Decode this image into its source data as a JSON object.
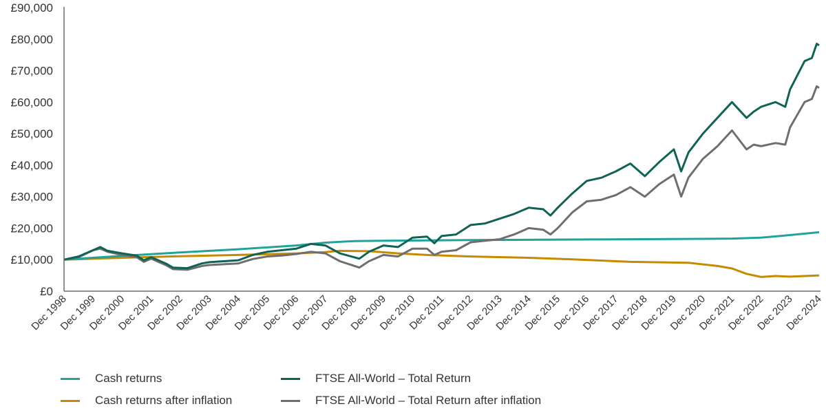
{
  "chart_data": {
    "type": "line",
    "title": "",
    "xlabel": "",
    "ylabel": "",
    "ylim": [
      0,
      90000
    ],
    "xlim": [
      "1998-12",
      "2024-12"
    ],
    "y_ticks": [
      0,
      10000,
      20000,
      30000,
      40000,
      50000,
      60000,
      70000,
      80000,
      90000
    ],
    "y_tick_labels": [
      "£0",
      "£10,000",
      "£20,000",
      "£30,000",
      "£40,000",
      "£50,000",
      "£60,000",
      "£70,000",
      "£80,000",
      "£90,000"
    ],
    "x_tick_labels": [
      "Dec 1998",
      "Dec 1999",
      "Dec 2000",
      "Dec 2001",
      "Dec 2002",
      "Dec 2003",
      "Dec 2004",
      "Dec 2005",
      "Dec 2006",
      "Dec 2007",
      "Dec 2008",
      "Dec 2009",
      "Dec 2010",
      "Dec 2011",
      "Dec 2012",
      "Dec 2013",
      "Dec 2014",
      "Dec 2015",
      "Dec 2016",
      "Dec 2017",
      "Dec 2018",
      "Dec 2019",
      "Dec 2020",
      "Dec 2021",
      "Dec 2022",
      "Dec 2023",
      "Dec 2024"
    ],
    "grid": false,
    "legend_position": "bottom",
    "series": [
      {
        "name": "Cash returns",
        "color": "#1fa39a",
        "points": [
          [
            "1998-12",
            10000
          ],
          [
            "2000-12",
            11200
          ],
          [
            "2002-12",
            12300
          ],
          [
            "2004-12",
            13300
          ],
          [
            "2006-12",
            14500
          ],
          [
            "2007-12",
            15400
          ],
          [
            "2008-12",
            15900
          ],
          [
            "2009-12",
            16000
          ],
          [
            "2012-12",
            16200
          ],
          [
            "2016-12",
            16400
          ],
          [
            "2020-12",
            16600
          ],
          [
            "2021-12",
            16700
          ],
          [
            "2022-12",
            17000
          ],
          [
            "2023-12",
            17800
          ],
          [
            "2024-12",
            18700
          ]
        ]
      },
      {
        "name": "Cash returns after inflation",
        "color": "#c68a00",
        "points": [
          [
            "1998-12",
            10000
          ],
          [
            "2000-12",
            10600
          ],
          [
            "2002-12",
            11100
          ],
          [
            "2004-12",
            11500
          ],
          [
            "2006-12",
            12000
          ],
          [
            "2007-12",
            12400
          ],
          [
            "2008-06",
            12800
          ],
          [
            "2009-06",
            12700
          ],
          [
            "2010-06",
            12000
          ],
          [
            "2011-06",
            11500
          ],
          [
            "2012-12",
            11000
          ],
          [
            "2014-12",
            10600
          ],
          [
            "2016-06",
            10100
          ],
          [
            "2018-06",
            9300
          ],
          [
            "2020-06",
            9000
          ],
          [
            "2021-06",
            8000
          ],
          [
            "2021-12",
            7200
          ],
          [
            "2022-06",
            5500
          ],
          [
            "2022-12",
            4500
          ],
          [
            "2023-06",
            4800
          ],
          [
            "2023-12",
            4600
          ],
          [
            "2024-12",
            5000
          ]
        ]
      },
      {
        "name": "FTSE All-World – Total Return",
        "color": "#0f6355",
        "points": [
          [
            "1998-12",
            10000
          ],
          [
            "1999-06",
            11000
          ],
          [
            "1999-12",
            13000
          ],
          [
            "2000-03",
            14000
          ],
          [
            "2000-06",
            12800
          ],
          [
            "2000-12",
            12000
          ],
          [
            "2001-06",
            11300
          ],
          [
            "2001-09",
            9800
          ],
          [
            "2001-12",
            10800
          ],
          [
            "2002-06",
            8800
          ],
          [
            "2002-09",
            7500
          ],
          [
            "2003-03",
            7300
          ],
          [
            "2003-09",
            8800
          ],
          [
            "2003-12",
            9200
          ],
          [
            "2004-12",
            9800
          ],
          [
            "2005-06",
            11500
          ],
          [
            "2005-12",
            12500
          ],
          [
            "2006-06",
            13000
          ],
          [
            "2006-12",
            13500
          ],
          [
            "2007-06",
            15000
          ],
          [
            "2007-12",
            14500
          ],
          [
            "2008-06",
            12000
          ],
          [
            "2009-02",
            10300
          ],
          [
            "2009-06",
            12500
          ],
          [
            "2009-12",
            14500
          ],
          [
            "2010-06",
            14000
          ],
          [
            "2010-12",
            17000
          ],
          [
            "2011-06",
            17300
          ],
          [
            "2011-09",
            15200
          ],
          [
            "2011-12",
            17500
          ],
          [
            "2012-06",
            18000
          ],
          [
            "2012-12",
            21000
          ],
          [
            "2013-06",
            21500
          ],
          [
            "2013-12",
            23000
          ],
          [
            "2014-06",
            24500
          ],
          [
            "2014-12",
            26500
          ],
          [
            "2015-06",
            26000
          ],
          [
            "2015-09",
            24000
          ],
          [
            "2015-12",
            26500
          ],
          [
            "2016-06",
            31000
          ],
          [
            "2016-12",
            35000
          ],
          [
            "2017-06",
            36000
          ],
          [
            "2017-12",
            38000
          ],
          [
            "2018-06",
            40500
          ],
          [
            "2018-12",
            36500
          ],
          [
            "2019-06",
            41000
          ],
          [
            "2019-12",
            45000
          ],
          [
            "2020-03",
            38000
          ],
          [
            "2020-06",
            44000
          ],
          [
            "2020-12",
            50000
          ],
          [
            "2021-06",
            55000
          ],
          [
            "2021-12",
            60000
          ],
          [
            "2022-06",
            55000
          ],
          [
            "2022-09",
            57000
          ],
          [
            "2022-12",
            58500
          ],
          [
            "2023-06",
            60000
          ],
          [
            "2023-10",
            58500
          ],
          [
            "2023-12",
            64000
          ],
          [
            "2024-06",
            73000
          ],
          [
            "2024-09",
            74000
          ],
          [
            "2024-11",
            78500
          ],
          [
            "2024-12",
            78000
          ]
        ]
      },
      {
        "name": "FTSE All-World – Total Return after inflation",
        "color": "#6e6e6e",
        "points": [
          [
            "1998-12",
            10000
          ],
          [
            "1999-06",
            10800
          ],
          [
            "1999-12",
            13000
          ],
          [
            "2000-03",
            13500
          ],
          [
            "2000-06",
            12500
          ],
          [
            "2000-12",
            11500
          ],
          [
            "2001-06",
            10800
          ],
          [
            "2001-09",
            9300
          ],
          [
            "2001-12",
            10300
          ],
          [
            "2002-06",
            8300
          ],
          [
            "2002-09",
            7000
          ],
          [
            "2003-03",
            6800
          ],
          [
            "2003-09",
            8000
          ],
          [
            "2003-12",
            8300
          ],
          [
            "2004-12",
            8800
          ],
          [
            "2005-06",
            10200
          ],
          [
            "2005-12",
            11000
          ],
          [
            "2006-06",
            11300
          ],
          [
            "2006-12",
            11800
          ],
          [
            "2007-06",
            12500
          ],
          [
            "2007-12",
            12000
          ],
          [
            "2008-06",
            9500
          ],
          [
            "2009-02",
            7500
          ],
          [
            "2009-06",
            9500
          ],
          [
            "2009-12",
            11500
          ],
          [
            "2010-06",
            11000
          ],
          [
            "2010-12",
            13500
          ],
          [
            "2011-06",
            13500
          ],
          [
            "2011-09",
            11500
          ],
          [
            "2011-12",
            12500
          ],
          [
            "2012-06",
            13000
          ],
          [
            "2012-12",
            15500
          ],
          [
            "2013-06",
            16000
          ],
          [
            "2013-12",
            16500
          ],
          [
            "2014-06",
            18000
          ],
          [
            "2014-12",
            20000
          ],
          [
            "2015-06",
            19500
          ],
          [
            "2015-09",
            18000
          ],
          [
            "2015-12",
            20000
          ],
          [
            "2016-06",
            25000
          ],
          [
            "2016-12",
            28500
          ],
          [
            "2017-06",
            29000
          ],
          [
            "2017-12",
            30500
          ],
          [
            "2018-06",
            33000
          ],
          [
            "2018-12",
            30000
          ],
          [
            "2019-06",
            34000
          ],
          [
            "2019-12",
            37000
          ],
          [
            "2020-03",
            30000
          ],
          [
            "2020-06",
            36000
          ],
          [
            "2020-12",
            42000
          ],
          [
            "2021-06",
            46000
          ],
          [
            "2021-12",
            51000
          ],
          [
            "2022-06",
            45000
          ],
          [
            "2022-09",
            46500
          ],
          [
            "2022-12",
            46000
          ],
          [
            "2023-06",
            47000
          ],
          [
            "2023-10",
            46500
          ],
          [
            "2023-12",
            52000
          ],
          [
            "2024-06",
            60000
          ],
          [
            "2024-09",
            61000
          ],
          [
            "2024-11",
            65000
          ],
          [
            "2024-12",
            64500
          ]
        ]
      }
    ]
  }
}
